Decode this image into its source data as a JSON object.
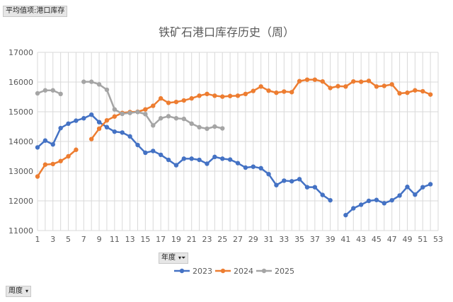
{
  "pivot": {
    "value_field": "平均值项:港口库存",
    "legend_field": "年度",
    "axis_field": "周度"
  },
  "chart_data": {
    "type": "line",
    "title": "铁矿石港口库存历史（周）",
    "xlabel": "",
    "ylabel": "",
    "xlim": [
      1,
      53
    ],
    "ylim": [
      11000,
      17000
    ],
    "x_ticks": [
      1,
      3,
      5,
      7,
      9,
      11,
      13,
      15,
      17,
      19,
      21,
      23,
      25,
      27,
      29,
      31,
      33,
      35,
      37,
      39,
      41,
      43,
      45,
      47,
      49,
      51,
      53
    ],
    "y_ticks": [
      11000,
      12000,
      13000,
      14000,
      15000,
      16000,
      17000
    ],
    "grid": true,
    "legend_position": "bottom",
    "series": [
      {
        "name": "2023",
        "color": "#4472c4",
        "values": [
          13800,
          14030,
          13900,
          14450,
          14600,
          14700,
          14780,
          14900,
          14650,
          14480,
          14330,
          14300,
          14170,
          13880,
          13620,
          13680,
          13550,
          13380,
          13200,
          13420,
          13420,
          13380,
          13250,
          13480,
          13420,
          13390,
          13270,
          13120,
          13150,
          13100,
          12900,
          12530,
          12680,
          12660,
          12730,
          12460,
          12460,
          12200,
          12020,
          null,
          11520,
          11750,
          11870,
          12000,
          12030,
          11920,
          12020,
          12180,
          12470,
          12210,
          12460,
          12560
        ]
      },
      {
        "name": "2024",
        "color": "#ed7d31",
        "values": [
          12820,
          13220,
          13240,
          13340,
          13500,
          13720,
          null,
          14080,
          14430,
          14710,
          14840,
          14960,
          14990,
          15000,
          15080,
          15200,
          15450,
          15300,
          15330,
          15380,
          15450,
          15540,
          15600,
          15540,
          15510,
          15530,
          15540,
          15600,
          15700,
          15850,
          15710,
          15640,
          15680,
          15660,
          16030,
          16080,
          16080,
          16020,
          15800,
          15860,
          15850,
          16020,
          16010,
          16040,
          15850,
          15870,
          15920,
          15620,
          15640,
          15720,
          15690,
          15580
        ]
      },
      {
        "name": "2025",
        "color": "#a5a5a5",
        "values": [
          15620,
          15720,
          15720,
          15600,
          null,
          null,
          16010,
          16010,
          15920,
          15740,
          15080,
          14930,
          14960,
          14990,
          14920,
          14540,
          14780,
          14850,
          14780,
          14760,
          14600,
          14480,
          14430,
          14500,
          14440
        ]
      }
    ]
  }
}
